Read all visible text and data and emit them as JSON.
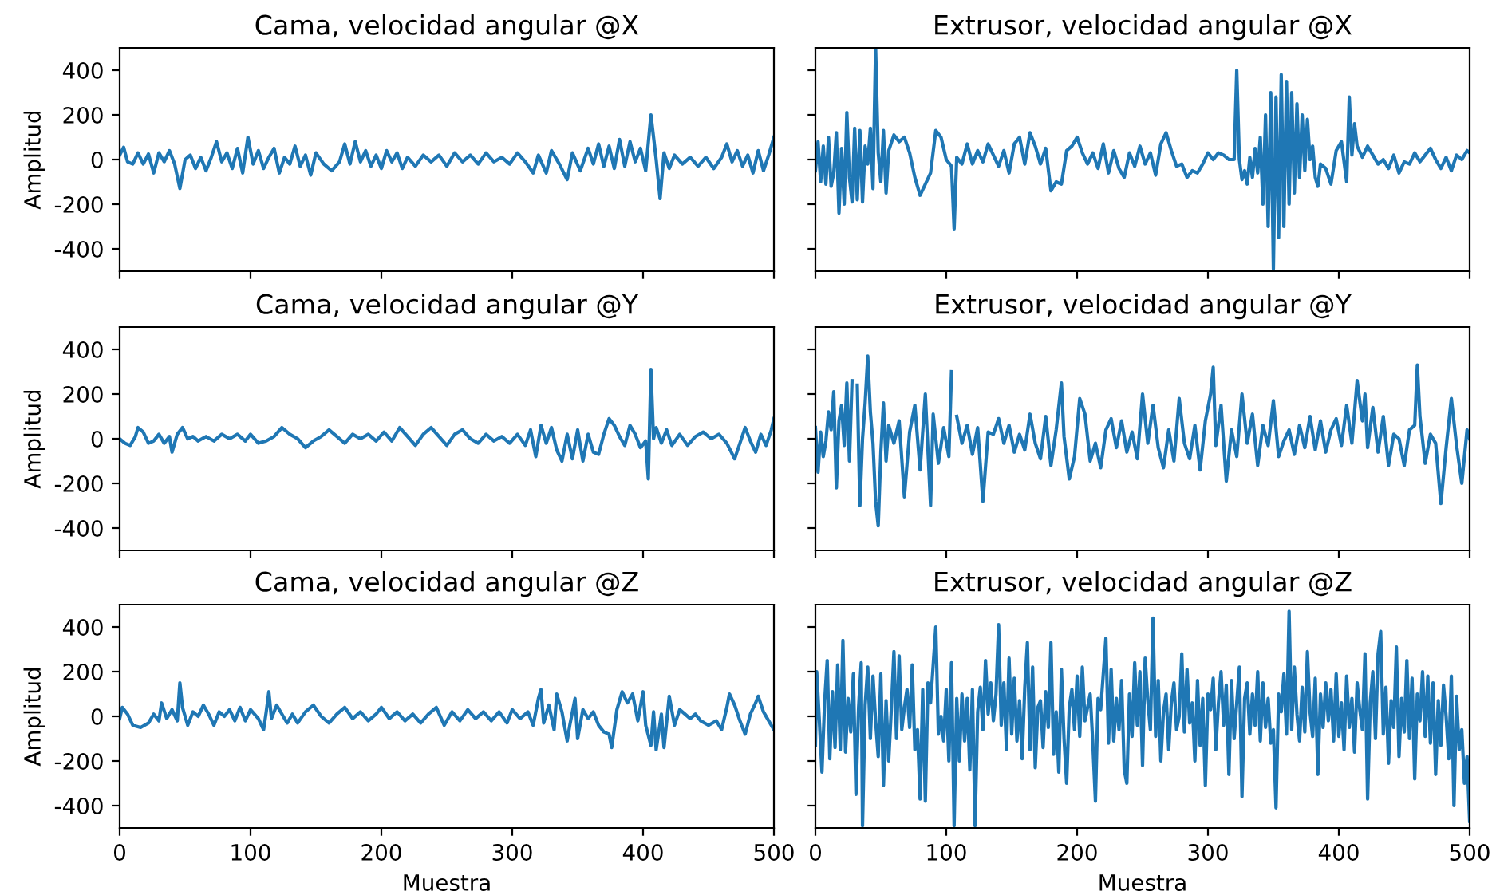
{
  "chart_data": [
    {
      "type": "line",
      "title": "Cama, velocidad angular @X",
      "ylabel": "Amplitud",
      "color": "#1f77b4",
      "xlim": [
        0,
        500
      ],
      "ylim": [
        -500,
        500
      ],
      "xticks": [
        0,
        100,
        200,
        300,
        400,
        500
      ],
      "yticks": [
        -400,
        -200,
        0,
        200,
        400
      ],
      "tick_labels": "y",
      "x": [
        0,
        3,
        6,
        10,
        14,
        18,
        22,
        26,
        30,
        34,
        38,
        42,
        46,
        50,
        54,
        58,
        62,
        66,
        70,
        74,
        78,
        82,
        86,
        90,
        94,
        98,
        102,
        106,
        110,
        114,
        118,
        122,
        126,
        130,
        134,
        138,
        142,
        146,
        150,
        156,
        162,
        168,
        172,
        176,
        180,
        184,
        188,
        192,
        196,
        200,
        204,
        208,
        212,
        216,
        220,
        226,
        232,
        238,
        244,
        250,
        256,
        262,
        268,
        274,
        280,
        286,
        292,
        298,
        304,
        310,
        316,
        320,
        326,
        330,
        336,
        342,
        346,
        352,
        358,
        362,
        366,
        370,
        374,
        378,
        382,
        386,
        390,
        394,
        398,
        402,
        406,
        410,
        413,
        416,
        420,
        424,
        430,
        436,
        442,
        448,
        454,
        460,
        464,
        468,
        472,
        476,
        480,
        484,
        488,
        492,
        496,
        500
      ],
      "values": [
        20,
        55,
        -10,
        -20,
        30,
        -20,
        25,
        -60,
        30,
        -10,
        40,
        -20,
        -130,
        0,
        20,
        -40,
        10,
        -50,
        10,
        80,
        -10,
        30,
        -40,
        50,
        -60,
        100,
        -20,
        40,
        -40,
        10,
        50,
        -60,
        10,
        -20,
        60,
        -30,
        20,
        -70,
        30,
        -20,
        -50,
        -10,
        70,
        -20,
        80,
        -10,
        40,
        -30,
        20,
        -40,
        40,
        -10,
        30,
        -40,
        10,
        -30,
        20,
        -10,
        20,
        -30,
        30,
        -10,
        20,
        -20,
        30,
        -10,
        10,
        -20,
        30,
        -10,
        -60,
        20,
        -60,
        40,
        -20,
        -90,
        30,
        -50,
        50,
        -20,
        70,
        -30,
        60,
        -40,
        90,
        -30,
        80,
        -10,
        50,
        -50,
        200,
        0,
        -175,
        30,
        -40,
        20,
        -20,
        10,
        -30,
        10,
        -40,
        10,
        70,
        -10,
        40,
        -30,
        20,
        -60,
        40,
        -50,
        20,
        100
      ]
    },
    {
      "type": "line",
      "title": "Extrusor, velocidad angular @X",
      "color": "#1f77b4",
      "xlim": [
        0,
        500
      ],
      "ylim": [
        -500,
        500
      ],
      "xticks": [
        0,
        100,
        200,
        300,
        400,
        500
      ],
      "yticks": [
        -400,
        -200,
        0,
        200,
        400
      ],
      "tick_labels": false,
      "x": [
        0,
        2,
        4,
        6,
        8,
        10,
        12,
        14,
        16,
        18,
        20,
        22,
        24,
        26,
        28,
        30,
        32,
        34,
        36,
        38,
        40,
        42,
        44,
        46,
        48,
        50,
        52,
        54,
        56,
        60,
        64,
        68,
        72,
        76,
        80,
        84,
        88,
        92,
        96,
        100,
        104,
        106,
        108,
        112,
        116,
        120,
        124,
        128,
        132,
        136,
        140,
        144,
        148,
        152,
        156,
        160,
        164,
        168,
        172,
        176,
        180,
        184,
        188,
        192,
        196,
        200,
        204,
        208,
        212,
        216,
        220,
        224,
        228,
        232,
        236,
        240,
        244,
        248,
        252,
        256,
        260,
        264,
        268,
        272,
        276,
        280,
        284,
        288,
        292,
        296,
        300,
        304,
        308,
        312,
        316,
        320,
        322,
        324,
        326,
        328,
        330,
        332,
        334,
        336,
        338,
        340,
        342,
        344,
        346,
        348,
        350,
        352,
        354,
        356,
        358,
        360,
        362,
        364,
        366,
        368,
        370,
        372,
        374,
        376,
        378,
        380,
        382,
        384,
        386,
        390,
        394,
        398,
        402,
        406,
        408,
        410,
        412,
        414,
        418,
        422,
        426,
        430,
        434,
        438,
        442,
        446,
        450,
        454,
        458,
        462,
        466,
        470,
        474,
        478,
        482,
        486,
        490,
        494,
        498,
        500
      ],
      "values": [
        -50,
        80,
        -100,
        60,
        -110,
        100,
        -120,
        -60,
        120,
        -240,
        50,
        -200,
        210,
        -80,
        -190,
        140,
        -180,
        130,
        -190,
        60,
        -20,
        140,
        -130,
        500,
        30,
        -100,
        130,
        -150,
        40,
        110,
        80,
        100,
        30,
        -80,
        -160,
        -110,
        -60,
        130,
        100,
        0,
        -30,
        -310,
        10,
        -20,
        70,
        -20,
        40,
        -10,
        70,
        20,
        -30,
        40,
        -60,
        70,
        100,
        -20,
        120,
        60,
        -20,
        50,
        -140,
        -100,
        -110,
        40,
        60,
        100,
        30,
        -20,
        30,
        -40,
        70,
        -60,
        40,
        -40,
        -80,
        30,
        -30,
        60,
        -20,
        30,
        -70,
        70,
        120,
        40,
        -30,
        -20,
        -80,
        -50,
        -60,
        -20,
        30,
        0,
        30,
        20,
        0,
        0,
        400,
        0,
        -90,
        -50,
        -110,
        10,
        -80,
        50,
        -60,
        100,
        -200,
        200,
        -300,
        300,
        -490,
        280,
        -350,
        380,
        -300,
        350,
        -200,
        300,
        -150,
        250,
        -80,
        200,
        -50,
        180,
        0,
        60,
        -80,
        -120,
        -20,
        -40,
        -110,
        40,
        80,
        -100,
        280,
        20,
        160,
        60,
        10,
        60,
        20,
        -20,
        0,
        -40,
        20,
        -60,
        -10,
        -20,
        30,
        -10,
        20,
        50,
        0,
        -40,
        10,
        -50,
        20,
        0,
        40,
        30
      ]
    },
    {
      "type": "line",
      "title": "Cama, velocidad angular @Y",
      "ylabel": "Amplitud",
      "color": "#1f77b4",
      "xlim": [
        0,
        500
      ],
      "ylim": [
        -500,
        500
      ],
      "xticks": [
        0,
        100,
        200,
        300,
        400,
        500
      ],
      "yticks": [
        -400,
        -200,
        0,
        200,
        400
      ],
      "tick_labels": "y",
      "x": [
        0,
        4,
        8,
        12,
        14,
        18,
        22,
        26,
        30,
        34,
        38,
        40,
        44,
        48,
        52,
        56,
        60,
        66,
        72,
        78,
        84,
        90,
        96,
        100,
        106,
        112,
        118,
        124,
        130,
        136,
        142,
        148,
        154,
        160,
        166,
        172,
        178,
        184,
        190,
        196,
        202,
        208,
        214,
        220,
        226,
        232,
        238,
        244,
        250,
        256,
        262,
        268,
        274,
        280,
        286,
        292,
        298,
        304,
        310,
        314,
        318,
        322,
        326,
        330,
        334,
        338,
        342,
        346,
        350,
        354,
        358,
        362,
        366,
        370,
        374,
        378,
        382,
        386,
        390,
        394,
        398,
        402,
        404,
        406,
        408,
        410,
        414,
        418,
        422,
        428,
        434,
        440,
        446,
        452,
        458,
        464,
        470,
        474,
        478,
        482,
        486,
        490,
        494,
        498,
        500
      ],
      "values": [
        0,
        -20,
        -30,
        10,
        50,
        30,
        -20,
        -10,
        20,
        -20,
        10,
        -60,
        20,
        50,
        0,
        10,
        -10,
        10,
        -10,
        20,
        0,
        20,
        -10,
        20,
        -20,
        -10,
        10,
        50,
        20,
        0,
        -40,
        -10,
        10,
        40,
        10,
        -20,
        20,
        0,
        20,
        -10,
        30,
        -10,
        50,
        10,
        -30,
        20,
        50,
        10,
        -30,
        20,
        40,
        0,
        -20,
        20,
        -10,
        10,
        -20,
        20,
        -30,
        40,
        -80,
        60,
        -20,
        50,
        -50,
        -100,
        20,
        -90,
        40,
        -100,
        20,
        -60,
        -70,
        20,
        90,
        60,
        10,
        -30,
        60,
        20,
        -40,
        -10,
        -180,
        310,
        0,
        50,
        -20,
        40,
        -30,
        20,
        -30,
        10,
        30,
        0,
        20,
        -20,
        -90,
        -20,
        50,
        -10,
        -60,
        20,
        -30,
        40,
        90
      ]
    },
    {
      "type": "line",
      "title": "Extrusor, velocidad angular @Y",
      "color": "#1f77b4",
      "xlim": [
        0,
        500
      ],
      "ylim": [
        -500,
        500
      ],
      "xticks": [
        0,
        100,
        200,
        300,
        400,
        500
      ],
      "yticks": [
        -400,
        -200,
        0,
        200,
        400
      ],
      "tick_labels": false,
      "x": [
        0,
        2,
        4,
        6,
        8,
        10,
        12,
        14,
        16,
        18,
        20,
        22,
        24,
        26,
        28,
        30,
        32,
        34,
        36,
        38,
        40,
        42,
        44,
        46,
        48,
        50,
        52,
        54,
        56,
        60,
        64,
        68,
        72,
        76,
        80,
        84,
        88,
        90,
        94,
        98,
        102,
        104,
        106,
        108,
        112,
        116,
        120,
        124,
        128,
        132,
        136,
        140,
        144,
        148,
        152,
        156,
        160,
        164,
        168,
        172,
        176,
        180,
        184,
        188,
        190,
        194,
        198,
        202,
        206,
        210,
        214,
        218,
        222,
        226,
        230,
        234,
        238,
        242,
        246,
        250,
        254,
        258,
        262,
        266,
        270,
        274,
        278,
        282,
        286,
        290,
        294,
        298,
        302,
        304,
        306,
        310,
        314,
        318,
        322,
        326,
        330,
        334,
        338,
        342,
        346,
        350,
        354,
        358,
        362,
        366,
        370,
        374,
        378,
        382,
        386,
        390,
        394,
        398,
        402,
        406,
        410,
        414,
        418,
        420,
        422,
        426,
        430,
        434,
        438,
        442,
        446,
        450,
        454,
        458,
        460,
        462,
        466,
        470,
        474,
        478,
        482,
        486,
        490,
        494,
        498,
        500
      ],
      "values": [
        50,
        -150,
        30,
        -80,
        -10,
        120,
        40,
        210,
        -220,
        80,
        150,
        -30,
        250,
        -100,
        260,
        null,
        240,
        -300,
        0,
        160,
        370,
        120,
        -20,
        -280,
        -390,
        -60,
        160,
        -100,
        60,
        -20,
        80,
        -260,
        30,
        150,
        -140,
        200,
        -300,
        110,
        -110,
        50,
        -80,
        300,
        null,
        100,
        -20,
        60,
        -70,
        50,
        -280,
        30,
        20,
        90,
        -20,
        60,
        -60,
        20,
        -50,
        110,
        -20,
        -90,
        100,
        -120,
        40,
        250,
        10,
        -180,
        -80,
        180,
        110,
        -100,
        -20,
        -130,
        40,
        90,
        -40,
        80,
        -60,
        30,
        -90,
        200,
        -20,
        150,
        -40,
        -130,
        40,
        -100,
        180,
        -20,
        -90,
        60,
        -140,
        80,
        200,
        320,
        -30,
        150,
        -190,
        40,
        -80,
        200,
        -20,
        110,
        -120,
        60,
        -30,
        170,
        -80,
        -10,
        40,
        -70,
        60,
        -40,
        100,
        -50,
        80,
        -60,
        40,
        90,
        -30,
        150,
        -20,
        260,
        80,
        200,
        -40,
        140,
        -60,
        100,
        -120,
        20,
        0,
        -120,
        40,
        60,
        330,
        100,
        -110,
        20,
        -20,
        -290,
        -40,
        180,
        -30,
        -200,
        40,
        0
      ]
    },
    {
      "type": "line",
      "title": "Cama, velocidad angular @Z",
      "xlabel": "Muestra",
      "ylabel": "Amplitud",
      "color": "#1f77b4",
      "xlim": [
        0,
        500
      ],
      "ylim": [
        -500,
        500
      ],
      "xticks": [
        0,
        100,
        200,
        300,
        400,
        500
      ],
      "yticks": [
        -400,
        -200,
        0,
        200,
        400
      ],
      "x": [
        0,
        2,
        6,
        10,
        16,
        22,
        26,
        30,
        32,
        36,
        40,
        44,
        46,
        48,
        52,
        56,
        60,
        64,
        68,
        72,
        76,
        80,
        84,
        88,
        92,
        96,
        100,
        106,
        110,
        112,
        114,
        116,
        120,
        124,
        128,
        132,
        136,
        142,
        148,
        154,
        160,
        166,
        172,
        178,
        184,
        190,
        196,
        200,
        206,
        212,
        218,
        224,
        230,
        236,
        242,
        248,
        254,
        260,
        266,
        272,
        278,
        284,
        290,
        296,
        300,
        306,
        312,
        316,
        320,
        322,
        324,
        328,
        332,
        334,
        338,
        342,
        344,
        348,
        350,
        354,
        358,
        362,
        366,
        370,
        374,
        376,
        380,
        384,
        388,
        392,
        396,
        400,
        402,
        406,
        408,
        410,
        414,
        416,
        420,
        424,
        428,
        432,
        436,
        440,
        444,
        450,
        456,
        460,
        464,
        466,
        470,
        474,
        478,
        482,
        486,
        488,
        492,
        496,
        500
      ],
      "values": [
        -10,
        40,
        10,
        -40,
        -50,
        -30,
        10,
        -20,
        60,
        -10,
        30,
        -20,
        150,
        40,
        -40,
        20,
        0,
        50,
        10,
        -40,
        20,
        0,
        30,
        -20,
        40,
        -20,
        30,
        -10,
        -60,
        20,
        110,
        -10,
        50,
        10,
        -30,
        10,
        -30,
        20,
        50,
        0,
        -30,
        10,
        40,
        -10,
        20,
        -20,
        10,
        40,
        -10,
        20,
        -20,
        10,
        -30,
        10,
        40,
        -40,
        20,
        -20,
        30,
        -10,
        20,
        -20,
        20,
        -30,
        30,
        -10,
        20,
        -40,
        80,
        120,
        -30,
        50,
        -60,
        100,
        20,
        -110,
        -40,
        80,
        -100,
        30,
        -10,
        20,
        -40,
        -70,
        -80,
        -140,
        30,
        110,
        60,
        100,
        -20,
        110,
        -40,
        -130,
        20,
        -150,
        10,
        -140,
        90,
        -40,
        30,
        10,
        -10,
        10,
        -20,
        -40,
        -20,
        -60,
        40,
        100,
        50,
        -20,
        -80,
        10,
        60,
        90,
        20,
        -20,
        -60
      ]
    },
    {
      "type": "line",
      "title": "Extrusor, velocidad angular @Z",
      "xlabel": "Muestra",
      "color": "#1f77b4",
      "xlim": [
        0,
        500
      ],
      "ylim": [
        -500,
        500
      ],
      "xticks": [
        0,
        100,
        200,
        300,
        400,
        500
      ],
      "yticks": [
        -400,
        -200,
        0,
        200,
        400
      ],
      "tick_labels": "x",
      "x": [
        0,
        1,
        3,
        5,
        7,
        9,
        11,
        13,
        15,
        17,
        19,
        21,
        23,
        25,
        27,
        29,
        31,
        33,
        35,
        36,
        38,
        40,
        42,
        44,
        46,
        48,
        50,
        52,
        54,
        56,
        58,
        60,
        62,
        64,
        66,
        68,
        70,
        72,
        74,
        76,
        78,
        80,
        82,
        84,
        86,
        88,
        90,
        92,
        94,
        96,
        98,
        100,
        102,
        104,
        106,
        108,
        110,
        112,
        114,
        116,
        118,
        120,
        122,
        124,
        126,
        128,
        130,
        132,
        134,
        136,
        138,
        140,
        142,
        144,
        146,
        148,
        150,
        152,
        154,
        156,
        158,
        160,
        162,
        164,
        166,
        168,
        170,
        172,
        174,
        176,
        178,
        180,
        182,
        184,
        186,
        188,
        190,
        192,
        194,
        196,
        198,
        200,
        202,
        204,
        206,
        210,
        212,
        214,
        216,
        218,
        222,
        224,
        226,
        228,
        230,
        232,
        234,
        236,
        238,
        240,
        242,
        244,
        246,
        248,
        250,
        252,
        254,
        256,
        258,
        260,
        262,
        264,
        266,
        268,
        270,
        272,
        274,
        276,
        278,
        280,
        282,
        284,
        286,
        288,
        290,
        292,
        294,
        296,
        298,
        300,
        302,
        304,
        306,
        308,
        310,
        312,
        314,
        316,
        318,
        320,
        324,
        326,
        328,
        330,
        332,
        334,
        336,
        338,
        340,
        342,
        344,
        346,
        348,
        350,
        352,
        354,
        356,
        358,
        360,
        362,
        364,
        366,
        368,
        370,
        372,
        374,
        376,
        378,
        380,
        382,
        384,
        386,
        388,
        390,
        392,
        394,
        396,
        398,
        400,
        402,
        404,
        406,
        408,
        410,
        412,
        414,
        416,
        418,
        420,
        422,
        424,
        426,
        428,
        430,
        432,
        434,
        436,
        438,
        440,
        442,
        444,
        446,
        448,
        450,
        452,
        454,
        456,
        458,
        460,
        462,
        464,
        466,
        468,
        470,
        472,
        474,
        476,
        478,
        480,
        482,
        484,
        486,
        488,
        490,
        492,
        494,
        496,
        498,
        500
      ],
      "values": [
        -130,
        200,
        -20,
        -250,
        60,
        250,
        -190,
        110,
        -140,
        230,
        -150,
        340,
        -160,
        80,
        -70,
        190,
        -350,
        40,
        240,
        -490,
        50,
        220,
        -100,
        180,
        -20,
        -180,
        190,
        -310,
        70,
        -200,
        30,
        290,
        -100,
        270,
        -60,
        40,
        120,
        -50,
        230,
        -150,
        -60,
        -370,
        120,
        -380,
        150,
        60,
        230,
        400,
        -80,
        0,
        -110,
        120,
        -200,
        240,
        -490,
        80,
        -200,
        100,
        -110,
        80,
        -240,
        120,
        -490,
        20,
        130,
        -60,
        250,
        10,
        150,
        -20,
        100,
        410,
        -40,
        150,
        -150,
        260,
        -80,
        170,
        -110,
        70,
        -190,
        130,
        330,
        -150,
        220,
        -230,
        40,
        70,
        -140,
        110,
        -50,
        330,
        -170,
        20,
        -250,
        210,
        -100,
        -300,
        40,
        120,
        -60,
        180,
        -90,
        220,
        -20,
        100,
        -120,
        -380,
        80,
        30,
        350,
        -120,
        210,
        -110,
        80,
        -60,
        160,
        -240,
        -300,
        100,
        -90,
        240,
        -40,
        200,
        -220,
        260,
        70,
        -60,
        440,
        -90,
        160,
        -200,
        20,
        100,
        -150,
        60,
        150,
        -60,
        0,
        280,
        -70,
        210,
        -30,
        60,
        -200,
        160,
        -130,
        80,
        -310,
        100,
        30,
        170,
        -150,
        60,
        200,
        -40,
        140,
        -260,
        160,
        -100,
        220,
        -360,
        80,
        150,
        -80,
        100,
        -40,
        200,
        -110,
        150,
        -50,
        80,
        -120,
        -60,
        -410,
        100,
        20,
        190,
        -80,
        470,
        -60,
        220,
        10,
        -110,
        130,
        -70,
        290,
        20,
        -90,
        170,
        -260,
        100,
        -50,
        150,
        -20,
        120,
        -110,
        190,
        -90,
        60,
        -150,
        180,
        -50,
        80,
        -160,
        150,
        30,
        -60,
        280,
        -370,
        60,
        200,
        -100,
        280,
        380,
        -80,
        130,
        -210,
        70,
        -50,
        310,
        -180,
        80,
        -70,
        250,
        -100,
        170,
        -280,
        100,
        -20,
        200,
        -90,
        180,
        -120,
        150,
        -260,
        70,
        -130,
        140,
        0,
        -190,
        180,
        -400,
        90,
        -150,
        -60,
        -300,
        -180,
        -470
      ]
    }
  ]
}
